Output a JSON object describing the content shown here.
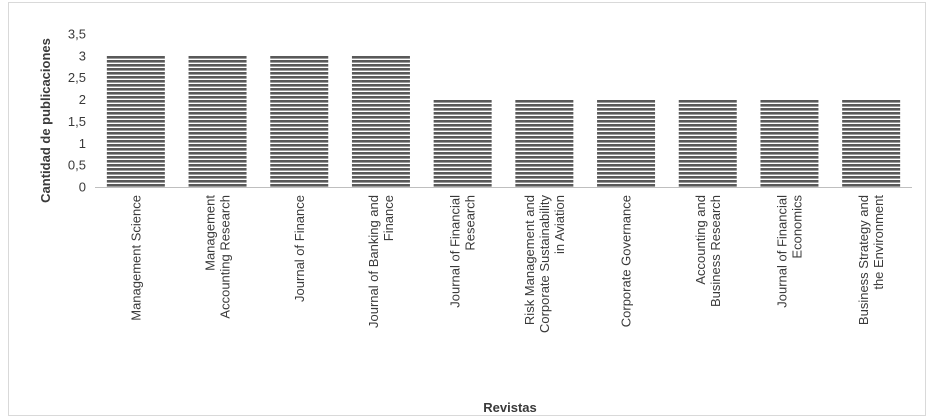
{
  "chart_data": {
    "type": "bar",
    "categories": [
      [
        "Management Science"
      ],
      [
        "Management",
        "Accounting Research"
      ],
      [
        "Journal of Finance"
      ],
      [
        "Journal of Banking and",
        "Finance"
      ],
      [
        "Journal of Financial",
        "Research"
      ],
      [
        "Risk Management and",
        "Corporate Sustainability",
        "in Aviation"
      ],
      [
        "Corporate Governance"
      ],
      [
        "Accounting and",
        "Business Research"
      ],
      [
        "Journal of Financial",
        "Economics"
      ],
      [
        "Business Strategy and",
        "the Environment"
      ]
    ],
    "values": [
      3,
      3,
      3,
      3,
      2,
      2,
      2,
      2,
      2,
      2
    ],
    "xlabel": "Revistas",
    "ylabel": "Cantidad de publicaciones",
    "ylim": [
      0,
      3.5
    ],
    "yticks": [
      "0",
      "0,5",
      "1",
      "1,5",
      "2",
      "2,5",
      "3",
      "3,5"
    ],
    "bar_pattern": "horizontal-stripes",
    "bar_color": "#595959",
    "grid": false
  }
}
